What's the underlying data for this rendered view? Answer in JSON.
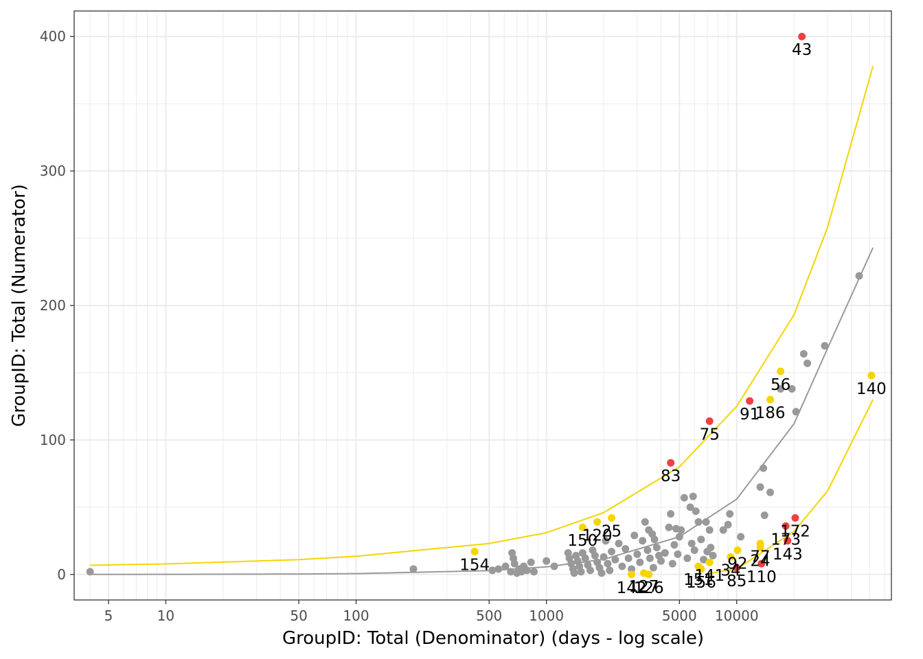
{
  "chart_data": {
    "type": "scatter",
    "xlabel": "GroupID:  Total (Denominator) (days - log scale)",
    "ylabel": "GroupID:  Total (Numerator)",
    "x_scale": "log",
    "xlim": [
      3.3,
      65000
    ],
    "ylim": [
      -19,
      419
    ],
    "x_ticks": [
      5,
      10,
      50,
      100,
      500,
      1000,
      5000,
      10000
    ],
    "x_tick_labels": [
      "5",
      "10",
      "50",
      "100",
      "500",
      "1000",
      "5000",
      "10000"
    ],
    "y_ticks": [
      0,
      100,
      200,
      300,
      400
    ],
    "y_tick_labels": [
      "0",
      "100",
      "200",
      "300",
      "400"
    ],
    "grid": true,
    "colors": {
      "normal": "#999999",
      "warning": "#f5d400",
      "flagged": "#f04040",
      "panel_border": "#333333",
      "grid": "#ebebeb"
    },
    "curves": [
      {
        "name": "expected",
        "color": "#999999",
        "points": [
          [
            4,
            0.02
          ],
          [
            10,
            0.06
          ],
          [
            50,
            0.3
          ],
          [
            100,
            0.6
          ],
          [
            500,
            2.8
          ],
          [
            1000,
            5.6
          ],
          [
            2000,
            11.2
          ],
          [
            5000,
            28
          ],
          [
            10000,
            56
          ],
          [
            20000,
            112
          ],
          [
            30000,
            168
          ],
          [
            52000,
            243
          ]
        ]
      },
      {
        "name": "upper-bound",
        "color": "#f5d400",
        "points": [
          [
            4,
            6.8
          ],
          [
            10,
            7.8
          ],
          [
            50,
            11
          ],
          [
            100,
            13.5
          ],
          [
            500,
            23
          ],
          [
            1000,
            31
          ],
          [
            2000,
            46
          ],
          [
            5000,
            80
          ],
          [
            10000,
            125
          ],
          [
            20000,
            193
          ],
          [
            30000,
            258
          ],
          [
            52000,
            378
          ]
        ]
      },
      {
        "name": "lower-bound",
        "color": "#f5d400",
        "points": [
          [
            7000,
            0.5
          ],
          [
            10000,
            4
          ],
          [
            20000,
            32
          ],
          [
            30000,
            62
          ],
          [
            52000,
            130
          ]
        ]
      }
    ],
    "series": [
      {
        "name": "flagged",
        "color": "#f04040",
        "points": [
          {
            "x": 22000,
            "y": 400,
            "label": "43"
          },
          {
            "x": 7200,
            "y": 114,
            "label": "75"
          },
          {
            "x": 4500,
            "y": 83,
            "label": "83"
          },
          {
            "x": 11700,
            "y": 129,
            "label": "91"
          },
          {
            "x": 20300,
            "y": 42,
            "label": "172"
          },
          {
            "x": 18100,
            "y": 36,
            "label": "173"
          },
          {
            "x": 18500,
            "y": 25,
            "label": "143"
          },
          {
            "x": 13500,
            "y": 8,
            "label": "110"
          },
          {
            "x": 10000,
            "y": 5,
            "label": "85"
          }
        ]
      },
      {
        "name": "warning",
        "color": "#f5d400",
        "points": [
          {
            "x": 17000,
            "y": 151,
            "label": "56"
          },
          {
            "x": 15000,
            "y": 130,
            "label": "186"
          },
          {
            "x": 51000,
            "y": 148,
            "label": "140"
          },
          {
            "x": 1850,
            "y": 39,
            "label": "120"
          },
          {
            "x": 2200,
            "y": 42,
            "label": "25"
          },
          {
            "x": 1550,
            "y": 35,
            "label": "150"
          },
          {
            "x": 420,
            "y": 17,
            "label": "154"
          },
          {
            "x": 13300,
            "y": 23,
            "label": "77"
          },
          {
            "x": 13300,
            "y": 20,
            "label": "24"
          },
          {
            "x": 10100,
            "y": 18,
            "label": "92"
          },
          {
            "x": 9300,
            "y": 13,
            "label": "34"
          },
          {
            "x": 7200,
            "y": 9,
            "label": "141"
          },
          {
            "x": 6300,
            "y": 6,
            "label": "151"
          },
          {
            "x": 6500,
            "y": 4,
            "label": "156"
          },
          {
            "x": 2800,
            "y": 0,
            "label": "142"
          },
          {
            "x": 3450,
            "y": 0,
            "label": "126"
          },
          {
            "x": 3250,
            "y": 1,
            "label": "127"
          }
        ]
      },
      {
        "name": "normal",
        "color": "#999999",
        "points": [
          {
            "x": 4,
            "y": 2
          },
          {
            "x": 200,
            "y": 4
          },
          {
            "x": 520,
            "y": 3
          },
          {
            "x": 560,
            "y": 4
          },
          {
            "x": 610,
            "y": 6
          },
          {
            "x": 650,
            "y": 2
          },
          {
            "x": 660,
            "y": 16
          },
          {
            "x": 670,
            "y": 12
          },
          {
            "x": 680,
            "y": 8
          },
          {
            "x": 700,
            "y": 1
          },
          {
            "x": 720,
            "y": 4
          },
          {
            "x": 740,
            "y": 2
          },
          {
            "x": 760,
            "y": 6
          },
          {
            "x": 790,
            "y": 3
          },
          {
            "x": 830,
            "y": 9
          },
          {
            "x": 860,
            "y": 2
          },
          {
            "x": 1000,
            "y": 10
          },
          {
            "x": 1100,
            "y": 6
          },
          {
            "x": 1300,
            "y": 16
          },
          {
            "x": 1320,
            "y": 12
          },
          {
            "x": 1350,
            "y": 8
          },
          {
            "x": 1380,
            "y": 4
          },
          {
            "x": 1400,
            "y": 1
          },
          {
            "x": 1430,
            "y": 14
          },
          {
            "x": 1460,
            "y": 10
          },
          {
            "x": 1490,
            "y": 6
          },
          {
            "x": 1520,
            "y": 2
          },
          {
            "x": 1550,
            "y": 16
          },
          {
            "x": 1600,
            "y": 12
          },
          {
            "x": 1650,
            "y": 7
          },
          {
            "x": 1700,
            "y": 3
          },
          {
            "x": 1750,
            "y": 18
          },
          {
            "x": 1800,
            "y": 14
          },
          {
            "x": 1850,
            "y": 9
          },
          {
            "x": 1900,
            "y": 5
          },
          {
            "x": 1950,
            "y": 1
          },
          {
            "x": 2000,
            "y": 13
          },
          {
            "x": 2050,
            "y": 25
          },
          {
            "x": 2100,
            "y": 8
          },
          {
            "x": 2150,
            "y": 3
          },
          {
            "x": 2200,
            "y": 17
          },
          {
            "x": 2300,
            "y": 11
          },
          {
            "x": 2400,
            "y": 23
          },
          {
            "x": 2500,
            "y": 6
          },
          {
            "x": 2600,
            "y": 19
          },
          {
            "x": 2700,
            "y": 12
          },
          {
            "x": 2800,
            "y": 4
          },
          {
            "x": 2900,
            "y": 29
          },
          {
            "x": 3000,
            "y": 15
          },
          {
            "x": 3100,
            "y": 9
          },
          {
            "x": 3200,
            "y": 25
          },
          {
            "x": 3300,
            "y": 39
          },
          {
            "x": 3400,
            "y": 18
          },
          {
            "x": 3450,
            "y": 33
          },
          {
            "x": 3500,
            "y": 12
          },
          {
            "x": 3600,
            "y": 30
          },
          {
            "x": 3650,
            "y": 5
          },
          {
            "x": 3700,
            "y": 26
          },
          {
            "x": 3800,
            "y": 20
          },
          {
            "x": 3900,
            "y": 14
          },
          {
            "x": 4000,
            "y": 10
          },
          {
            "x": 4200,
            "y": 16
          },
          {
            "x": 4400,
            "y": 35
          },
          {
            "x": 4500,
            "y": 45
          },
          {
            "x": 4600,
            "y": 8
          },
          {
            "x": 4700,
            "y": 22
          },
          {
            "x": 4800,
            "y": 34
          },
          {
            "x": 4900,
            "y": 15
          },
          {
            "x": 5000,
            "y": 28
          },
          {
            "x": 5100,
            "y": 33
          },
          {
            "x": 5300,
            "y": 57
          },
          {
            "x": 5500,
            "y": 12
          },
          {
            "x": 5700,
            "y": 50
          },
          {
            "x": 5800,
            "y": 23
          },
          {
            "x": 5900,
            "y": 58
          },
          {
            "x": 6000,
            "y": 18
          },
          {
            "x": 6100,
            "y": 47
          },
          {
            "x": 6300,
            "y": 39
          },
          {
            "x": 6500,
            "y": 26
          },
          {
            "x": 6700,
            "y": 11
          },
          {
            "x": 6900,
            "y": 39
          },
          {
            "x": 7000,
            "y": 17
          },
          {
            "x": 7200,
            "y": 33
          },
          {
            "x": 7300,
            "y": 20
          },
          {
            "x": 7500,
            "y": 14
          },
          {
            "x": 8500,
            "y": 33
          },
          {
            "x": 9000,
            "y": 37
          },
          {
            "x": 9200,
            "y": 45
          },
          {
            "x": 10500,
            "y": 28
          },
          {
            "x": 13300,
            "y": 65
          },
          {
            "x": 13800,
            "y": 79
          },
          {
            "x": 14000,
            "y": 44
          },
          {
            "x": 15000,
            "y": 61
          },
          {
            "x": 17000,
            "y": 138
          },
          {
            "x": 19500,
            "y": 138
          },
          {
            "x": 20500,
            "y": 121
          },
          {
            "x": 22500,
            "y": 164
          },
          {
            "x": 23500,
            "y": 157
          },
          {
            "x": 29000,
            "y": 170
          },
          {
            "x": 44000,
            "y": 222
          }
        ]
      }
    ]
  }
}
